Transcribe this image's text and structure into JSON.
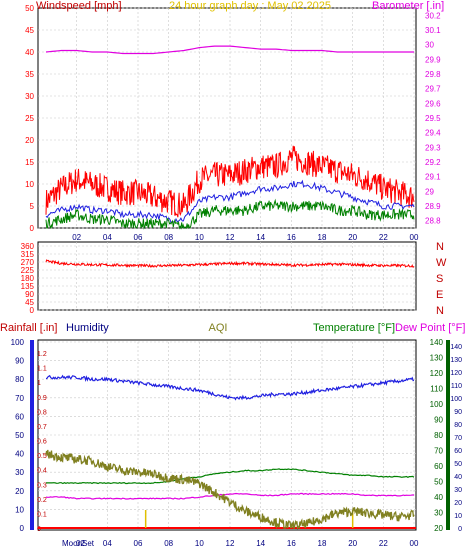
{
  "colors": {
    "red": "#ff0000",
    "magenta": "#e000e0",
    "blue": "#2020e0",
    "green": "#008000",
    "olive": "#808020",
    "yellow": "#e0c000",
    "darkred": "#c00000",
    "navy": "#000080",
    "brown": "#c0a060",
    "darkgreen": "#006000",
    "grid": "#c8c8c8"
  },
  "chart_data": [
    {
      "type": "line",
      "title": "24 hour graph day : May 02 2025",
      "left_axis_label": "Windspeed [mph]",
      "right_axis_label": "Barometer [.in]",
      "x_ticks": [
        "02",
        "04",
        "06",
        "08",
        "10",
        "12",
        "14",
        "16",
        "18",
        "20",
        "22",
        "00"
      ],
      "left_ticks": [
        "50",
        "45",
        "40",
        "35",
        "30",
        "25",
        "20",
        "15",
        "10",
        "5",
        "0"
      ],
      "right_ticks": [
        "30.2",
        "30.1",
        "30",
        "29.9",
        "29.8",
        "29.7",
        "29.6",
        "29.5",
        "29.4",
        "29.3",
        "29.2",
        "29.1",
        "29",
        "28.9",
        "28.8"
      ],
      "ylim": [
        0,
        50
      ],
      "right_ylim": [
        28.75,
        30.25
      ],
      "grid": true,
      "hours": [
        0,
        1,
        2,
        3,
        4,
        5,
        6,
        7,
        8,
        9,
        10,
        11,
        12,
        13,
        14,
        15,
        16,
        17,
        18,
        19,
        20,
        21,
        22,
        23,
        24
      ],
      "series": [
        {
          "axis": "right",
          "color": "magenta",
          "values": [
            29.95,
            29.96,
            29.96,
            29.95,
            29.95,
            29.94,
            29.94,
            29.94,
            29.95,
            29.96,
            29.98,
            29.99,
            29.99,
            29.98,
            29.97,
            29.97,
            29.96,
            29.96,
            29.96,
            29.95,
            29.95,
            29.95,
            29.95,
            29.95,
            29.95
          ]
        },
        {
          "axis": "left",
          "color": "red",
          "values": [
            6,
            9,
            11,
            10,
            9,
            8,
            8,
            7,
            6,
            5,
            11,
            12,
            12,
            13,
            14,
            14,
            16,
            15,
            14,
            13,
            12,
            11,
            9,
            8,
            7
          ]
        },
        {
          "axis": "left",
          "color": "blue",
          "values": [
            3,
            4,
            5,
            4,
            4,
            3,
            3,
            3,
            2,
            2,
            6,
            7,
            7,
            8,
            9,
            9,
            10,
            10,
            9,
            8,
            7,
            6,
            5,
            5,
            5
          ]
        },
        {
          "axis": "left",
          "color": "green",
          "values": [
            1,
            2,
            3,
            2,
            2,
            1,
            1,
            1,
            1,
            0,
            3,
            4,
            4,
            4,
            5,
            5,
            5,
            5,
            5,
            4,
            4,
            3,
            3,
            3,
            3
          ]
        }
      ]
    },
    {
      "type": "line",
      "title": "",
      "left_ticks": [
        "360",
        "315",
        "270",
        "225",
        "180",
        "135",
        "90",
        "45",
        "0"
      ],
      "right_ticks": [
        "N",
        "W",
        "S",
        "E",
        "N"
      ],
      "ylim": [
        0,
        360
      ],
      "grid": true,
      "hours": [
        0,
        1,
        2,
        3,
        4,
        5,
        6,
        7,
        8,
        9,
        10,
        11,
        12,
        13,
        14,
        15,
        16,
        17,
        18,
        19,
        20,
        21,
        22,
        23,
        24
      ],
      "series": [
        {
          "color": "red",
          "values": [
            275,
            262,
            258,
            255,
            253,
            252,
            250,
            248,
            250,
            252,
            255,
            258,
            262,
            262,
            258,
            256,
            252,
            253,
            256,
            258,
            255,
            252,
            250,
            250,
            248
          ]
        }
      ]
    },
    {
      "type": "line",
      "title": "AQI",
      "labels": {
        "rain": "Rainfall [.in]",
        "humidity": "Humidity",
        "temp": "Temperature [°F]",
        "dew": "Dew Point [°F]"
      },
      "x_ticks": [
        "04",
        "06",
        "08",
        "10",
        "12",
        "14",
        "16",
        "18",
        "20",
        "22",
        "00"
      ],
      "moon_labels": [
        "Moon",
        "Set",
        "02"
      ],
      "humidity_ticks": [
        "100",
        "90",
        "80",
        "70",
        "60",
        "50",
        "40",
        "30",
        "20",
        "10",
        "0"
      ],
      "rain_ticks": [
        "1.2",
        "1.1",
        "1",
        "0.9",
        "0.8",
        "0.7",
        "0.6",
        "0.5",
        "0.4",
        "0.3",
        "0.2",
        "0.1",
        "0"
      ],
      "temp_ticks": [
        "140",
        "130",
        "120",
        "110",
        "100",
        "90",
        "80",
        "70",
        "60",
        "50",
        "40",
        "30",
        "20"
      ],
      "far_ticks": [
        "140",
        "130",
        "120",
        "110",
        "100",
        "90",
        "80",
        "70",
        "60",
        "50",
        "40",
        "30",
        "20",
        "10",
        "0"
      ],
      "humidity_ylim": [
        0,
        100
      ],
      "temp_ylim": [
        20,
        140
      ],
      "grid": true,
      "hours": [
        0,
        1,
        2,
        3,
        4,
        5,
        6,
        7,
        8,
        9,
        10,
        11,
        12,
        13,
        14,
        15,
        16,
        17,
        18,
        19,
        20,
        21,
        22,
        23,
        24
      ],
      "series": [
        {
          "name": "Humidity",
          "axis": "humidity",
          "color": "blue",
          "values": [
            81,
            81,
            81,
            80,
            80,
            79,
            78,
            77,
            76,
            75,
            74,
            72,
            70,
            70,
            71,
            72,
            72,
            73,
            74,
            75,
            76,
            77,
            78,
            79,
            80
          ]
        },
        {
          "name": "Temperature",
          "axis": "temp",
          "color": "green",
          "values": [
            49,
            49,
            49,
            49,
            49,
            49,
            49,
            49,
            50,
            52,
            53,
            55,
            56,
            57,
            57,
            58,
            58,
            57,
            56,
            55,
            54,
            54,
            53,
            53,
            53
          ]
        },
        {
          "name": "Dew Point",
          "axis": "temp",
          "color": "magenta",
          "values": [
            40,
            40,
            39,
            39,
            39,
            39,
            39,
            39,
            39,
            39,
            40,
            41,
            42,
            42,
            41,
            41,
            42,
            42,
            42,
            42,
            42,
            41,
            41,
            41,
            41
          ]
        },
        {
          "name": "AQI",
          "axis": "humidity",
          "color": "olive",
          "values": [
            40,
            38,
            37,
            36,
            33,
            31,
            30,
            29,
            27,
            26,
            24,
            19,
            14,
            9,
            6,
            3,
            1,
            2,
            5,
            8,
            9,
            8,
            7,
            6,
            7
          ]
        }
      ],
      "rain_total": 0,
      "yellow_marks_hours": [
        6.5,
        20
      ]
    }
  ]
}
